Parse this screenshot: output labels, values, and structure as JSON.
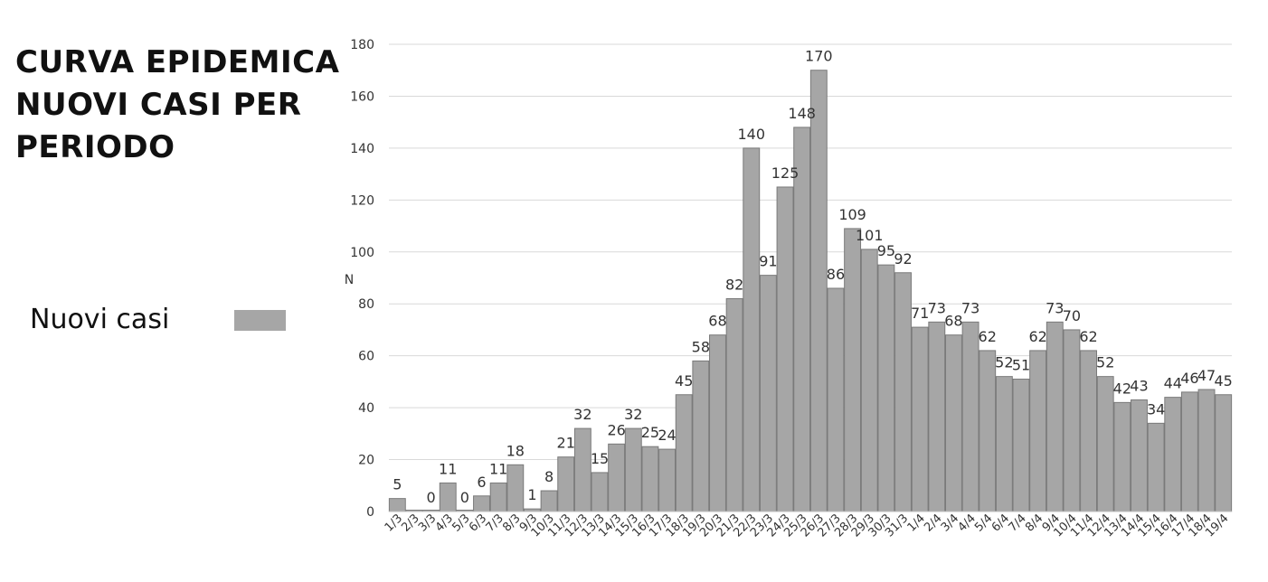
{
  "title_lines": [
    "CURVA EPIDEMICA",
    "NUOVI CASI PER",
    "PERIODO"
  ],
  "legend": {
    "label": "Nuovi casi",
    "color": "#a6a6a6"
  },
  "chart_data": {
    "type": "bar",
    "ylabel": "N",
    "ylim": [
      0,
      180
    ],
    "yticks": [
      0,
      20,
      40,
      60,
      80,
      100,
      120,
      140,
      160,
      180
    ],
    "grid": true,
    "legend_position": "left",
    "bar_color": "#a6a6a6",
    "categories": [
      "1/3",
      "2/3",
      "3/3",
      "4/3",
      "5/3",
      "6/3",
      "7/3",
      "8/3",
      "9/3",
      "10/3",
      "11/3",
      "12/3",
      "13/3",
      "14/3",
      "15/3",
      "16/3",
      "17/3",
      "18/3",
      "19/3",
      "20/3",
      "21/3",
      "22/3",
      "23/3",
      "24/3",
      "25/3",
      "26/3",
      "27/3",
      "28/3",
      "29/3",
      "30/3",
      "31/3",
      "1/4",
      "2/4",
      "3/4",
      "4/4",
      "5/4",
      "6/4",
      "7/4",
      "8/4",
      "9/4",
      "10/4",
      "11/4",
      "12/4",
      "13/4",
      "14/4",
      "15/4",
      "16/4",
      "17/4",
      "18/4",
      "19/4"
    ],
    "series": [
      {
        "name": "Nuovi casi",
        "values": [
          5,
          0,
          0,
          11,
          0,
          6,
          11,
          18,
          1,
          8,
          21,
          32,
          15,
          26,
          32,
          25,
          24,
          45,
          58,
          68,
          82,
          140,
          91,
          125,
          148,
          170,
          86,
          109,
          101,
          95,
          92,
          71,
          73,
          68,
          73,
          62,
          52,
          51,
          62,
          73,
          70,
          62,
          52,
          42,
          43,
          34,
          44,
          46,
          47,
          45
        ],
        "labels": [
          "5",
          "",
          "0",
          "11",
          "0",
          "6",
          "11",
          "18",
          "1",
          "8",
          "21",
          "32",
          "15",
          "26",
          "32",
          "25",
          "24",
          "45",
          "58",
          "68",
          "82",
          "140",
          "91",
          "125",
          "148",
          "170",
          "86",
          "109",
          "101",
          "95",
          "92",
          "71",
          "73",
          "68",
          "73",
          "62",
          "52",
          "51",
          "62",
          "73",
          "70",
          "62",
          "52",
          "42",
          "43",
          "34",
          "44",
          "46",
          "47",
          "45"
        ]
      }
    ]
  }
}
